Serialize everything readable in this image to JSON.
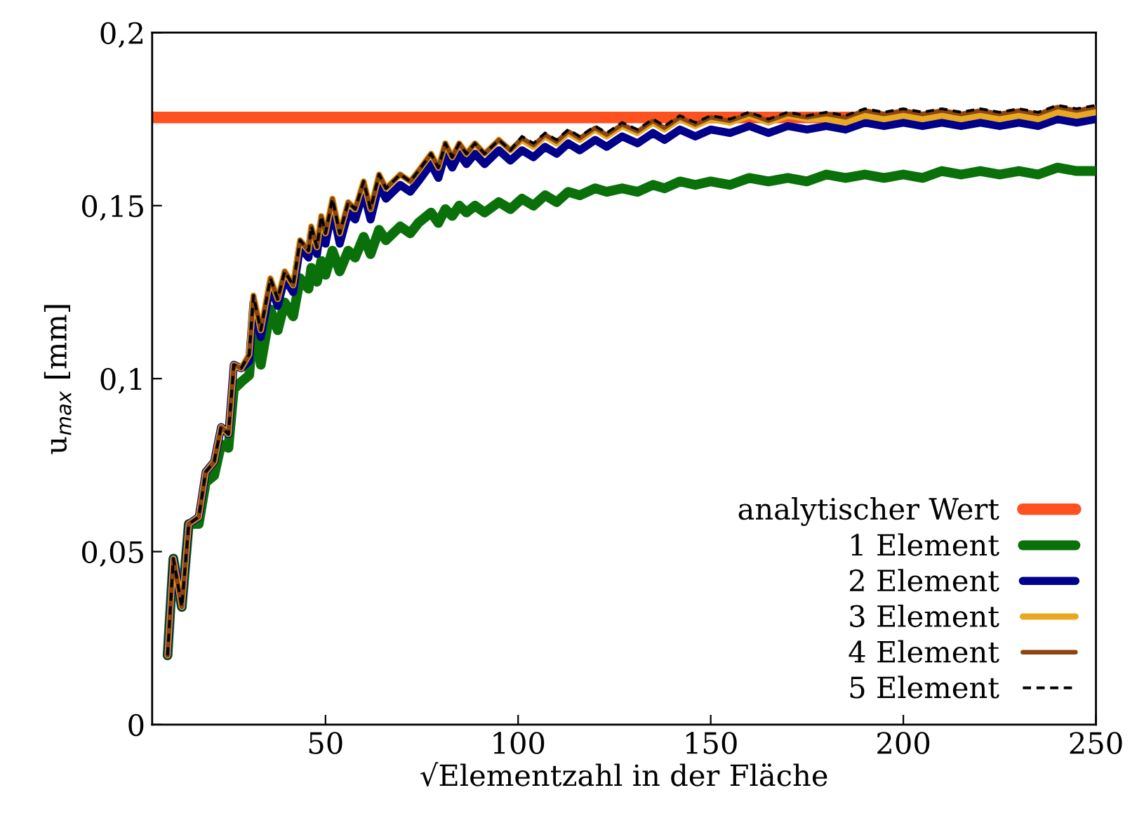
{
  "chart_data": {
    "type": "line",
    "xlabel": "√Elementzahl in der Fläche",
    "ylabel": "u$_{max}$ [mm]",
    "xlim": [
      5,
      250
    ],
    "xticks": [
      50,
      100,
      150,
      200,
      250
    ],
    "ylim": [
      0,
      0.2
    ],
    "yticks": [
      0,
      {
        "value": 0.05,
        "label": "0,05"
      },
      {
        "value": 0.1,
        "label": "0,1"
      },
      {
        "value": 0.15,
        "label": "0,15"
      },
      {
        "value": 0.2,
        "label": "0,2"
      }
    ],
    "grid": false,
    "legend": "bottom right",
    "line_style": "solid",
    "x": [
      9,
      10.5,
      12.7,
      14.5,
      17.1,
      18.9,
      21.1,
      22.9,
      24.8,
      26.2,
      28.1,
      30.2,
      31.3,
      33.2,
      35.7,
      37.6,
      39.4,
      41.6,
      43.4,
      45.6,
      46.3,
      47.8,
      48.9,
      50,
      51.8,
      53.7,
      55.9,
      57.7,
      59.9,
      61.7,
      63.9,
      65.7,
      69.4,
      72,
      74.1,
      77.4,
      79.3,
      81.1,
      82.9,
      84.7,
      86.6,
      88.8,
      91.3,
      95,
      98,
      101,
      104,
      107,
      110,
      113,
      116,
      120,
      123,
      127,
      131,
      135,
      138,
      142,
      146,
      150,
      155,
      160,
      165,
      170,
      175,
      180,
      185,
      190,
      195,
      200,
      205,
      210,
      215,
      220,
      225,
      230,
      235,
      240,
      245,
      250
    ],
    "series": [
      {
        "name": "analytischer Wert",
        "color": "#ff5020",
        "x": [
          5,
          250
        ],
        "values": [
          0.1755,
          0.1755
        ]
      },
      {
        "name": "1 Element",
        "color": "#0a700a",
        "values": [
          0.02,
          0.048,
          0.034,
          0.058,
          0.058,
          0.07,
          0.072,
          0.081,
          0.08,
          0.097,
          0.099,
          0.101,
          0.117,
          0.104,
          0.12,
          0.114,
          0.122,
          0.118,
          0.129,
          0.126,
          0.132,
          0.128,
          0.134,
          0.13,
          0.137,
          0.131,
          0.137,
          0.135,
          0.141,
          0.136,
          0.143,
          0.14,
          0.144,
          0.142,
          0.145,
          0.148,
          0.145,
          0.149,
          0.147,
          0.15,
          0.148,
          0.15,
          0.148,
          0.151,
          0.149,
          0.152,
          0.15,
          0.153,
          0.151,
          0.154,
          0.153,
          0.155,
          0.154,
          0.155,
          0.154,
          0.156,
          0.155,
          0.157,
          0.156,
          0.157,
          0.156,
          0.158,
          0.157,
          0.158,
          0.157,
          0.159,
          0.158,
          0.159,
          0.158,
          0.159,
          0.158,
          0.16,
          0.159,
          0.16,
          0.159,
          0.16,
          0.159,
          0.161,
          0.16,
          0.16
        ]
      },
      {
        "name": "2 Element",
        "color": "#00008b",
        "values": [
          0.02,
          0.048,
          0.034,
          0.058,
          0.06,
          0.073,
          0.076,
          0.086,
          0.084,
          0.104,
          0.103,
          0.105,
          0.122,
          0.112,
          0.127,
          0.121,
          0.129,
          0.125,
          0.138,
          0.135,
          0.142,
          0.136,
          0.145,
          0.139,
          0.149,
          0.139,
          0.148,
          0.146,
          0.154,
          0.146,
          0.156,
          0.152,
          0.156,
          0.154,
          0.157,
          0.162,
          0.158,
          0.165,
          0.161,
          0.165,
          0.162,
          0.165,
          0.162,
          0.166,
          0.163,
          0.166,
          0.164,
          0.167,
          0.165,
          0.168,
          0.166,
          0.169,
          0.167,
          0.17,
          0.168,
          0.171,
          0.169,
          0.172,
          0.17,
          0.172,
          0.171,
          0.173,
          0.171,
          0.173,
          0.172,
          0.173,
          0.172,
          0.174,
          0.173,
          0.174,
          0.173,
          0.174,
          0.173,
          0.174,
          0.173,
          0.174,
          0.173,
          0.175,
          0.174,
          0.175
        ]
      },
      {
        "name": "3 Element",
        "color": "#e8a820",
        "values": [
          0.02,
          0.048,
          0.034,
          0.058,
          0.06,
          0.073,
          0.076,
          0.086,
          0.084,
          0.104,
          0.103,
          0.107,
          0.124,
          0.114,
          0.129,
          0.123,
          0.131,
          0.127,
          0.14,
          0.137,
          0.144,
          0.138,
          0.147,
          0.142,
          0.152,
          0.142,
          0.151,
          0.149,
          0.157,
          0.149,
          0.159,
          0.155,
          0.159,
          0.157,
          0.16,
          0.165,
          0.161,
          0.168,
          0.164,
          0.168,
          0.165,
          0.168,
          0.165,
          0.169,
          0.166,
          0.169,
          0.167,
          0.17,
          0.168,
          0.171,
          0.169,
          0.172,
          0.17,
          0.173,
          0.171,
          0.174,
          0.172,
          0.175,
          0.173,
          0.175,
          0.174,
          0.176,
          0.174,
          0.176,
          0.175,
          0.175,
          0.174,
          0.176,
          0.175,
          0.176,
          0.175,
          0.176,
          0.175,
          0.176,
          0.175,
          0.176,
          0.175,
          0.177,
          0.176,
          0.177
        ]
      },
      {
        "name": "4 Element",
        "color": "#8b4513",
        "values": [
          0.02,
          0.048,
          0.034,
          0.058,
          0.06,
          0.073,
          0.076,
          0.086,
          0.084,
          0.104,
          0.103,
          0.107,
          0.124,
          0.114,
          0.129,
          0.123,
          0.131,
          0.127,
          0.14,
          0.137,
          0.144,
          0.138,
          0.147,
          0.142,
          0.152,
          0.142,
          0.151,
          0.149,
          0.157,
          0.149,
          0.159,
          0.155,
          0.159,
          0.157,
          0.16,
          0.165,
          0.161,
          0.168,
          0.164,
          0.168,
          0.165,
          0.168,
          0.165,
          0.169,
          0.166,
          0.1695,
          0.1675,
          0.1705,
          0.1685,
          0.1715,
          0.1695,
          0.1725,
          0.1705,
          0.1735,
          0.1715,
          0.1745,
          0.1725,
          0.1755,
          0.1735,
          0.1755,
          0.1745,
          0.1765,
          0.1745,
          0.1765,
          0.1755,
          0.1765,
          0.1755,
          0.1775,
          0.1765,
          0.1775,
          0.1765,
          0.1775,
          0.1765,
          0.1775,
          0.1765,
          0.1775,
          0.1765,
          0.1785,
          0.1775,
          0.1785
        ]
      },
      {
        "name": "5 Element",
        "color": "#000000",
        "line_style": "dashed",
        "values": [
          0.02,
          0.048,
          0.034,
          0.058,
          0.06,
          0.073,
          0.076,
          0.086,
          0.084,
          0.104,
          0.103,
          0.107,
          0.124,
          0.114,
          0.129,
          0.123,
          0.131,
          0.127,
          0.14,
          0.137,
          0.144,
          0.138,
          0.147,
          0.142,
          0.152,
          0.142,
          0.151,
          0.149,
          0.157,
          0.149,
          0.159,
          0.155,
          0.159,
          0.157,
          0.16,
          0.165,
          0.161,
          0.168,
          0.164,
          0.168,
          0.165,
          0.168,
          0.165,
          0.169,
          0.166,
          0.17,
          0.168,
          0.171,
          0.169,
          0.172,
          0.17,
          0.173,
          0.171,
          0.174,
          0.172,
          0.175,
          0.173,
          0.176,
          0.174,
          0.176,
          0.175,
          0.177,
          0.175,
          0.177,
          0.176,
          0.177,
          0.176,
          0.178,
          0.177,
          0.178,
          0.177,
          0.178,
          0.177,
          0.178,
          0.177,
          0.178,
          0.177,
          0.179,
          0.178,
          0.179
        ]
      }
    ]
  }
}
